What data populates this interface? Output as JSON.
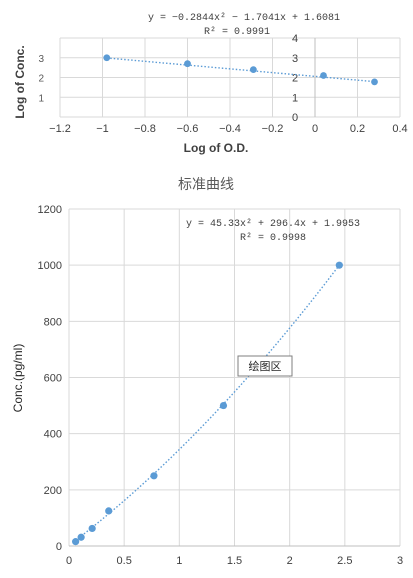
{
  "chart_data": [
    {
      "type": "scatter",
      "title": "",
      "xlabel": "Log of O.D.",
      "ylabel": "Log of Conc.",
      "xlim": [
        -1.2,
        0.4
      ],
      "ylim": [
        0,
        4
      ],
      "x_ticks": [
        "−1.2",
        "−1",
        "−0.8",
        "−0.6",
        "−0.4",
        "−0.2",
        "0",
        "0.2",
        "0.4"
      ],
      "y_ticks_right": [
        "0",
        "1",
        "2",
        "3",
        "4"
      ],
      "y_ticks_left": [
        "1",
        "2",
        "3"
      ],
      "grid": true,
      "trendline": "polynomial-2",
      "trendline_style": "dotted",
      "equation": "y = −0.2844x² − 1.7041x + 1.6081",
      "r_squared": "R² = 0.9991",
      "points": [
        {
          "x": -0.98,
          "y": 3.0
        },
        {
          "x": -0.6,
          "y": 2.7
        },
        {
          "x": -0.29,
          "y": 2.4
        },
        {
          "x": 0.04,
          "y": 2.1
        },
        {
          "x": 0.28,
          "y": 1.78
        }
      ],
      "trend_curve": [
        {
          "x": -0.98,
          "y": 2.99
        },
        {
          "x": 0.28,
          "y": 1.79
        }
      ]
    },
    {
      "type": "scatter",
      "title": "标准曲线",
      "xlabel": "",
      "ylabel": "Conc.(pg/ml)",
      "xlim": [
        0,
        3
      ],
      "ylim": [
        0,
        1200
      ],
      "x_ticks": [
        "0",
        "0.5",
        "1",
        "1.5",
        "2",
        "2.5",
        "3"
      ],
      "y_ticks": [
        "0",
        "200",
        "400",
        "600",
        "800",
        "1000",
        "1200"
      ],
      "grid": true,
      "trendline": "polynomial-2",
      "trendline_style": "dotted",
      "equation": "y = 45.33x² + 296.4x + 1.9953",
      "r_squared": "R² = 0.9998",
      "annotation": "绘图区",
      "points": [
        {
          "x": 0.06,
          "y": 15.6
        },
        {
          "x": 0.11,
          "y": 31.2
        },
        {
          "x": 0.21,
          "y": 62.5
        },
        {
          "x": 0.36,
          "y": 125
        },
        {
          "x": 0.77,
          "y": 250
        },
        {
          "x": 1.4,
          "y": 500
        },
        {
          "x": 2.45,
          "y": 1000
        }
      ]
    }
  ],
  "colors": {
    "marker": "#5b9bd5",
    "grid": "#d9d9d9",
    "axis": "#bfbfbf",
    "text": "#404040"
  }
}
